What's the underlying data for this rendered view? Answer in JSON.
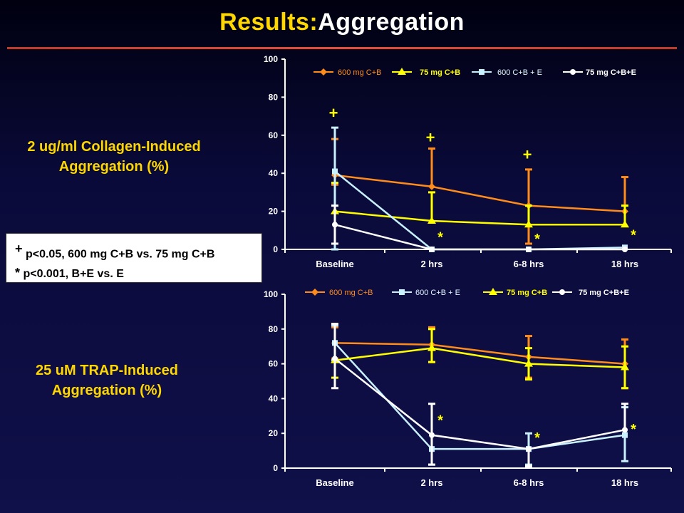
{
  "title": {
    "part1": "Results:",
    "part2": "Aggregation"
  },
  "labels": {
    "collagen_line1": "2 ug/ml Collagen-Induced",
    "collagen_line2": "Aggregation (%)",
    "trap_line1": "25 uM TRAP-Induced",
    "trap_line2": "Aggregation (%)"
  },
  "footnote": {
    "plus_mark": "+",
    "plus_text": "p<0.05, 600 mg C+B vs. 75 mg C+B",
    "star_mark": "*",
    "star_text": "p<0.001, B+E vs. E"
  },
  "chart_data": [
    {
      "type": "line",
      "categories": [
        "Baseline",
        "2 hrs",
        "6-8 hrs",
        "18 hrs"
      ],
      "ylim": [
        0,
        100
      ],
      "yticks": [
        0,
        20,
        40,
        60,
        80,
        100
      ],
      "legend_placement": "top",
      "series": [
        {
          "name": "600 mg C+B",
          "color": "#ff8c1a",
          "marker": "diamond",
          "values": [
            39,
            33,
            23,
            20
          ],
          "err_up": [
            19,
            20,
            19,
            18
          ],
          "err_down": [
            5,
            0,
            20,
            0
          ]
        },
        {
          "name": "75 mg C+B",
          "color": "#ffff00",
          "marker": "triangle",
          "values": [
            20,
            15,
            13,
            13
          ],
          "err_up": [
            15,
            15,
            10,
            10
          ],
          "err_down": [
            20,
            0,
            0,
            0
          ]
        },
        {
          "name": "600 C+B + E",
          "color": "#c8f0ff",
          "marker": "square",
          "values": [
            41,
            0,
            0,
            1
          ],
          "err_up": [
            23,
            0,
            0,
            0
          ],
          "err_down": [
            41,
            0,
            0,
            0
          ]
        },
        {
          "name": "75 mg C+B+E",
          "color": "#ffffff",
          "marker": "circle",
          "values": [
            13,
            0,
            0,
            0
          ],
          "err_up": [
            10,
            0,
            0,
            0
          ],
          "err_down": [
            10,
            0,
            0,
            0
          ]
        }
      ],
      "annotations": [
        {
          "text": "+",
          "category": "Baseline",
          "y": 72
        },
        {
          "text": "+",
          "category": "2 hrs",
          "y": 59
        },
        {
          "text": "+",
          "category": "6-8 hrs",
          "y": 50
        },
        {
          "text": "*",
          "category": "2 hrs",
          "y": 7
        },
        {
          "text": "*",
          "category": "6-8 hrs",
          "y": 6
        },
        {
          "text": "*",
          "category": "18 hrs",
          "y": 8
        }
      ]
    },
    {
      "type": "line",
      "categories": [
        "Baseline",
        "2 hrs",
        "6-8 hrs",
        "18 hrs"
      ],
      "ylim": [
        0,
        100
      ],
      "yticks": [
        0,
        20,
        40,
        60,
        80,
        100
      ],
      "legend_placement": "top",
      "series": [
        {
          "name": "600 mg C+B",
          "color": "#ff8c1a",
          "marker": "diamond",
          "values": [
            72,
            71,
            64,
            60
          ],
          "err_up": [
            9,
            10,
            12,
            14
          ],
          "err_down": [
            9,
            10,
            12,
            14
          ]
        },
        {
          "name": "600 C+B + E",
          "color": "#c8f0ff",
          "marker": "square",
          "values": [
            72,
            11,
            11,
            19
          ],
          "err_up": [
            10,
            0,
            9,
            16
          ],
          "err_down": [
            10,
            9,
            9,
            15
          ]
        },
        {
          "name": "75 mg C+B",
          "color": "#ffff00",
          "marker": "triangle",
          "values": [
            62,
            69,
            60,
            58
          ],
          "err_up": [
            0,
            11,
            9,
            12
          ],
          "err_down": [
            10,
            8,
            9,
            12
          ]
        },
        {
          "name": "75 mg C+B+E",
          "color": "#ffffff",
          "marker": "circle",
          "values": [
            63,
            19,
            11,
            22
          ],
          "err_up": [
            20,
            18,
            0,
            15
          ],
          "err_down": [
            17,
            17,
            10,
            0
          ]
        }
      ],
      "annotations": [
        {
          "text": "*",
          "category": "2 hrs",
          "y": 28
        },
        {
          "text": "*",
          "category": "6-8 hrs",
          "y": 18
        },
        {
          "text": "*",
          "category": "18 hrs",
          "y": 23
        }
      ]
    }
  ]
}
